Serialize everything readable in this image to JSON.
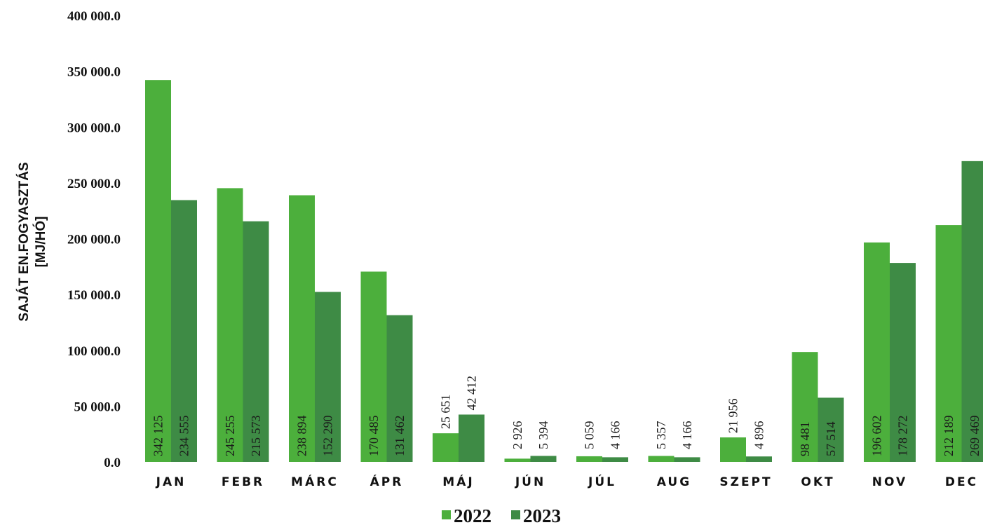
{
  "chart_data": {
    "type": "bar",
    "title": "",
    "ylabel": "SAJÁT EN.FOGYASZTÁS [MJ/HÓ]",
    "ylabel_lines": [
      "SAJÁT EN.FOGYASZTÁS",
      "[MJ/HÓ]"
    ],
    "xlabel": "",
    "ylim": [
      0,
      400000
    ],
    "yticks": [
      0,
      50000,
      100000,
      150000,
      200000,
      250000,
      300000,
      350000,
      400000
    ],
    "ytick_labels": [
      "0.0",
      "50 000.0",
      "100 000.0",
      "150 000.0",
      "200 000.0",
      "250 000.0",
      "300 000.0",
      "350 000.0",
      "400 000.0"
    ],
    "categories": [
      "JAN",
      "FEBR",
      "MÁRC",
      "ÁPR",
      "MÁJ",
      "JÚN",
      "JÚL",
      "AUG",
      "SZEPT",
      "OKT",
      "NOV",
      "DEC"
    ],
    "series": [
      {
        "name": "2022",
        "color": "#4caf3c",
        "values": [
          342125,
          245255,
          238894,
          170485,
          25651,
          2926,
          5059,
          5357,
          21956,
          98481,
          196602,
          212189
        ],
        "labels": [
          "342 125",
          "245 255",
          "238 894",
          "170 485",
          "25 651",
          "2 926",
          "5 059",
          "5 357",
          "21 956",
          "98 481",
          "196 602",
          "212 189"
        ]
      },
      {
        "name": "2023",
        "color": "#3e8b45",
        "values": [
          234555,
          215573,
          152290,
          131462,
          42412,
          5394,
          4166,
          4166,
          4896,
          57514,
          178272,
          269469
        ],
        "labels": [
          "234 555",
          "215 573",
          "152 290",
          "131 462",
          "42 412",
          "5 394",
          "4 166",
          "4 166",
          "4 896",
          "57 514",
          "178 272",
          "269 469"
        ]
      }
    ],
    "grid": false,
    "legend_position": "bottom"
  }
}
